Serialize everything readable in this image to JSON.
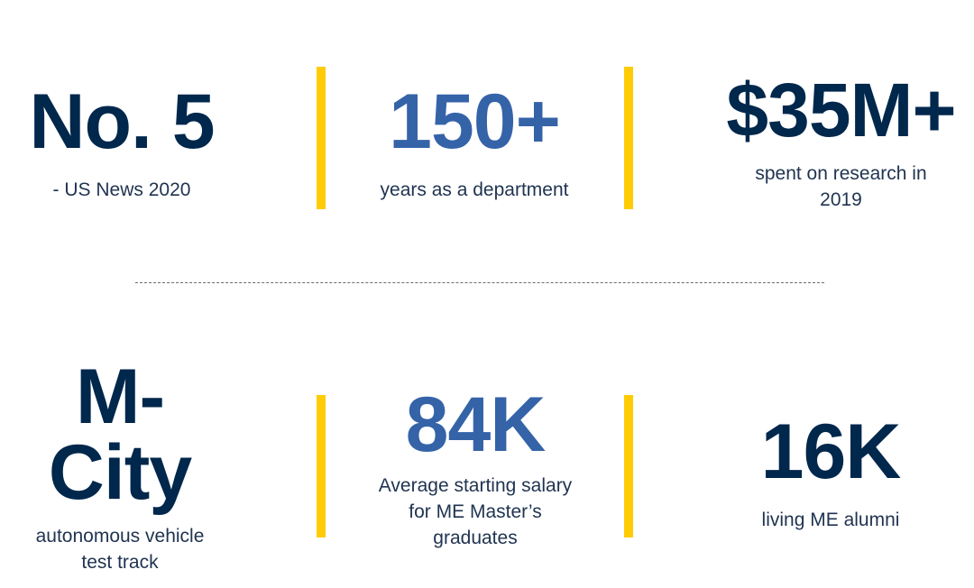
{
  "colors": {
    "navy": "#00274c",
    "blue": "#3563a8",
    "maize": "#ffcb05",
    "label_text": "#1f3350"
  },
  "stats": [
    {
      "value": "No. 5",
      "label": "- US News 2020"
    },
    {
      "value": "150+",
      "label": "years as a department"
    },
    {
      "value": "$35M+",
      "label_line1": "spent on research in",
      "label_line2": "2019"
    },
    {
      "value_line1": "M-",
      "value_line2": "City",
      "label_line1": "autonomous vehicle",
      "label_line2": "test track"
    },
    {
      "value": "84K",
      "label_line1": "Average starting salary",
      "label_line2": "for ME Master’s",
      "label_line3": "graduates"
    },
    {
      "value": "16K",
      "label": "living ME alumni"
    }
  ]
}
